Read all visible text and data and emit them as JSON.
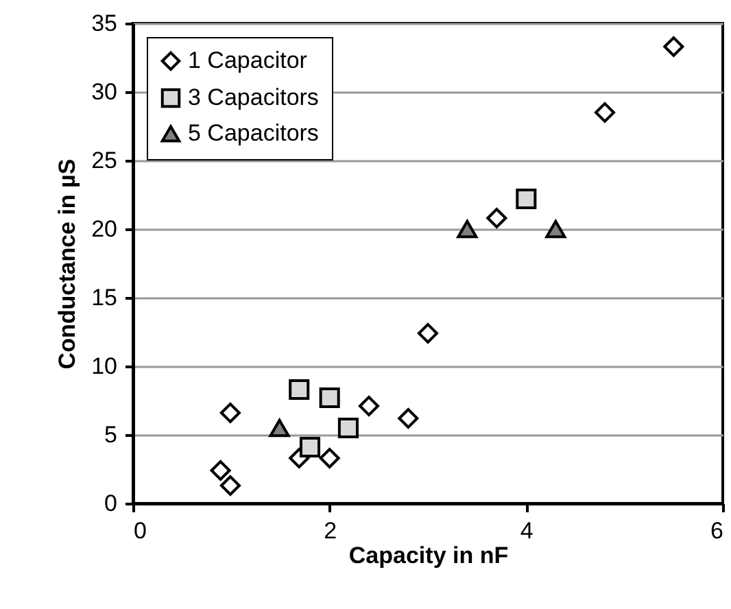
{
  "chart_data": {
    "type": "scatter",
    "xlabel": "Capacity in nF",
    "ylabel": "Conductance in µS",
    "xlim": [
      0,
      6
    ],
    "xticks": [
      0,
      2,
      4,
      6
    ],
    "ylim": [
      0,
      35
    ],
    "yticks": [
      0,
      5,
      10,
      15,
      20,
      25,
      30,
      35
    ],
    "grid": "y",
    "legend": "top left",
    "series": [
      {
        "name": "1 Capacitor",
        "color": "#ffffff",
        "marker": "diamond",
        "x": [
          0.99,
          0.89,
          0.99,
          1.69,
          2.0,
          2.4,
          2.8,
          3.0,
          3.7,
          4.8,
          5.5
        ],
        "values": [
          6.6,
          2.4,
          1.3,
          3.3,
          3.3,
          7.1,
          6.2,
          12.4,
          20.8,
          28.5,
          33.3
        ]
      },
      {
        "name": "3 Capacitors",
        "color": "#d9d9d9",
        "marker": "square",
        "x": [
          1.69,
          2.0,
          2.19,
          1.8,
          4.0
        ],
        "values": [
          8.3,
          7.7,
          5.5,
          4.1,
          22.2
        ]
      },
      {
        "name": "5 Capacitors",
        "color": "#808080",
        "marker": "triangle",
        "x": [
          1.49,
          3.4,
          4.3
        ],
        "values": [
          5.5,
          20,
          20
        ]
      }
    ]
  }
}
